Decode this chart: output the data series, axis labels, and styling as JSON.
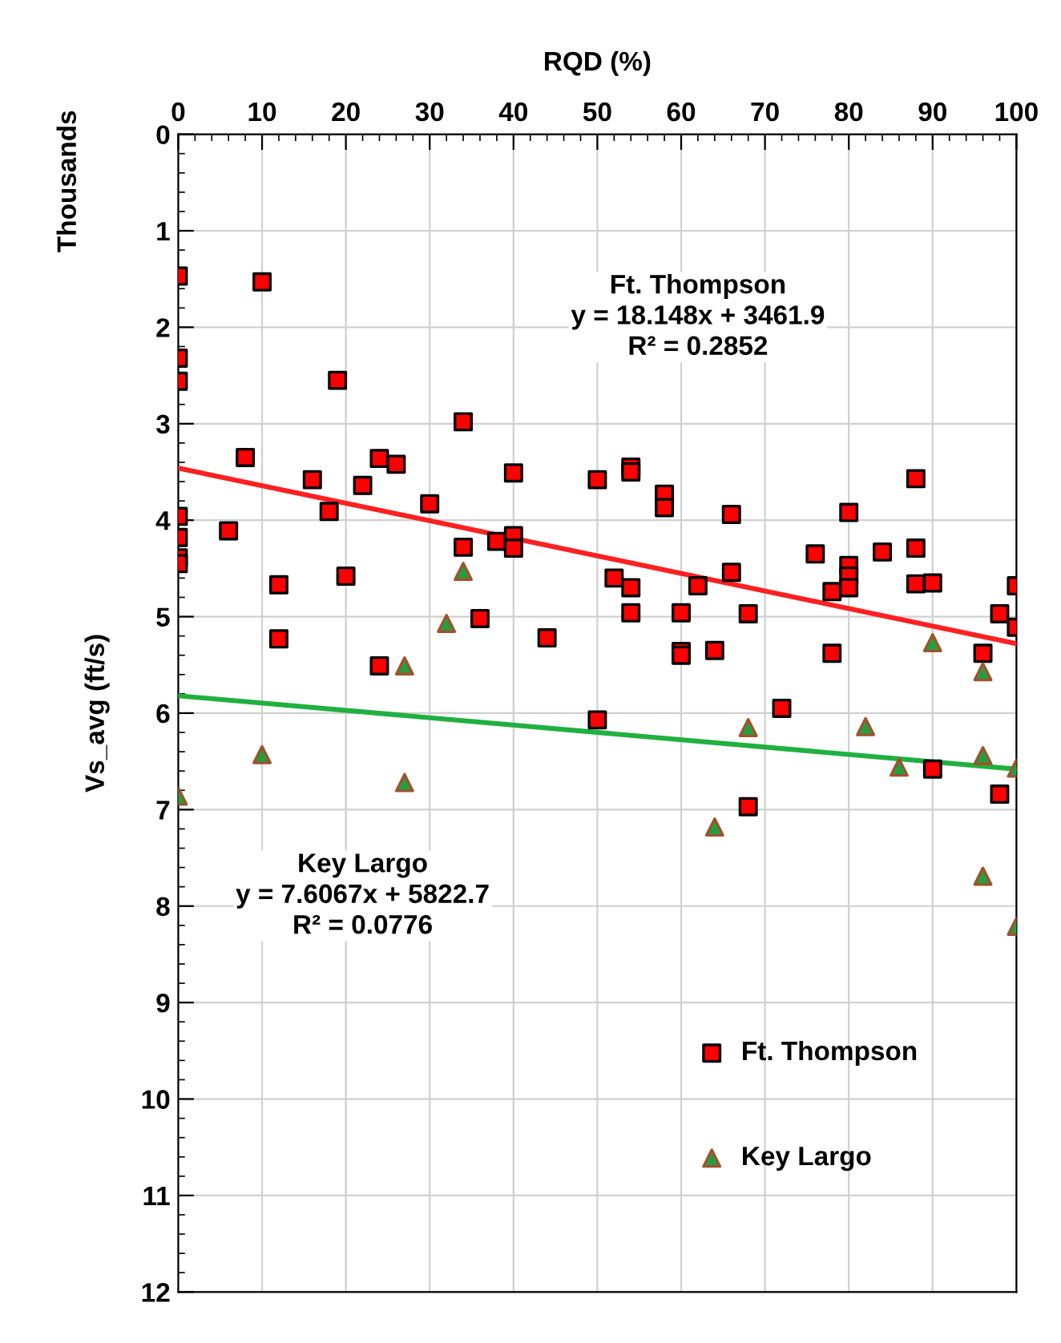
{
  "chart_data": {
    "type": "scatter",
    "xlabel": "RQD (%)",
    "ylabel": "Vs_avg (ft/s)",
    "xlim": [
      0,
      100
    ],
    "xticks": [
      0,
      10,
      20,
      30,
      40,
      50,
      60,
      70,
      80,
      90,
      100
    ],
    "ylim": [
      12,
      0
    ],
    "yticks": [
      0,
      1,
      2,
      3,
      4,
      5,
      6,
      7,
      8,
      9,
      10,
      11,
      12
    ],
    "grid": true,
    "legend": "bottom right",
    "annotations": [
      "Thousands",
      "Ft. Thompson\ny = 18.148x + 3461.9\nR² = 0.2852",
      "Key Largo\ny = 7.6067x + 5822.7\nR² = 0.0776"
    ],
    "series": [
      {
        "name": "Ft. Thompson",
        "marker": "square",
        "color": "#ff0000",
        "x": [
          0,
          0,
          0,
          0,
          0,
          0,
          0,
          10,
          19,
          34,
          8,
          6,
          12,
          12,
          16,
          18,
          20,
          22,
          24,
          26,
          24,
          30,
          34,
          36,
          38,
          40,
          40,
          40,
          44,
          50,
          50,
          52,
          54,
          54,
          54,
          54,
          60,
          60,
          60,
          58,
          58,
          62,
          64,
          66,
          66,
          68,
          68,
          72,
          76,
          78,
          78,
          80,
          80,
          80,
          80,
          84,
          88,
          88,
          88,
          90,
          90,
          96,
          98,
          98,
          100,
          100
        ],
        "values": [
          1.47,
          2.32,
          2.56,
          3.96,
          4.18,
          4.39,
          4.45,
          1.53,
          2.55,
          2.98,
          3.35,
          4.11,
          4.67,
          5.23,
          3.58,
          3.91,
          4.58,
          3.64,
          3.36,
          3.42,
          5.51,
          3.83,
          4.28,
          5.02,
          4.22,
          3.51,
          4.16,
          4.29,
          5.22,
          3.58,
          6.07,
          4.6,
          3.45,
          3.5,
          4.7,
          4.96,
          4.96,
          5.36,
          5.4,
          3.73,
          3.87,
          4.68,
          5.35,
          3.94,
          4.54,
          4.97,
          6.97,
          5.95,
          4.35,
          4.74,
          5.38,
          3.92,
          4.47,
          4.58,
          4.7,
          4.33,
          3.57,
          4.29,
          4.66,
          4.65,
          6.58,
          5.38,
          4.97,
          6.84,
          4.68,
          5.11
        ]
      },
      {
        "name": "Key Largo",
        "marker": "triangle",
        "color": "#22a040",
        "x": [
          0,
          10,
          27,
          27,
          32,
          34,
          64,
          68,
          82,
          86,
          90,
          96,
          96,
          96,
          100,
          100
        ],
        "values": [
          6.86,
          6.43,
          5.51,
          6.72,
          5.07,
          4.53,
          7.18,
          6.15,
          6.14,
          6.56,
          5.27,
          5.57,
          6.44,
          7.69,
          6.57,
          8.21
        ]
      },
      {
        "type": "line",
        "color": "#ff2020",
        "x": [
          0,
          100
        ],
        "values": [
          3.46,
          5.28
        ]
      },
      {
        "type": "line",
        "color": "#20b040",
        "x": [
          0,
          100
        ],
        "values": [
          5.82,
          6.58
        ]
      }
    ]
  }
}
